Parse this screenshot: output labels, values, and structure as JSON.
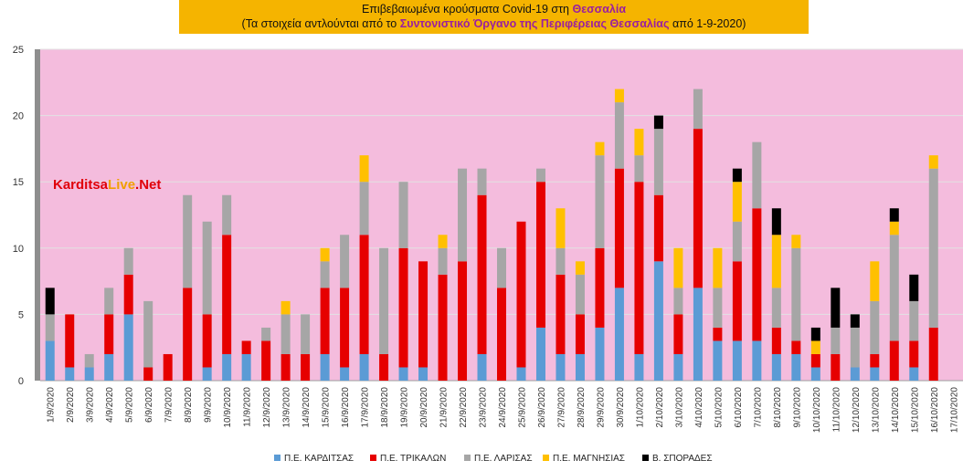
{
  "title": {
    "line1_prefix": "Επιβεβαιωμένα κρούσματα Covid-19 στη ",
    "line1_bold": "Θεσσαλία",
    "line2_prefix": "(Τα στοιχεία αντλούνται από το ",
    "line2_bold": "Συντονιστικό Όργανο της Περιφέρειας Θεσσαλίας",
    "line2_suffix": " από 1-9-2020)"
  },
  "brand": {
    "part1": "Karditsa",
    "part2": "Live",
    "part3": ".Net"
  },
  "colors": {
    "plot_bg": "#f4bcdd",
    "grid": "#e2e2e2",
    "karditsa": "#5b9bd5",
    "trikala": "#e60000",
    "larisa": "#a6a6a6",
    "magnisia": "#ffc000",
    "sporades": "#000000"
  },
  "chart_data": {
    "type": "bar",
    "stacked": true,
    "ylim": [
      0,
      25
    ],
    "yticks": [
      0,
      5,
      10,
      15,
      20,
      25
    ],
    "grid": true,
    "legend_position": "bottom",
    "categories": [
      "1/9/2020",
      "2/9/2020",
      "3/9/2020",
      "4/9/2020",
      "5/9/2020",
      "6/9/2020",
      "7/9/2020",
      "8/9/2020",
      "9/9/2020",
      "10/9/2020",
      "11/9/2020",
      "12/9/2020",
      "13/9/2020",
      "14/9/2020",
      "15/9/2020",
      "16/9/2020",
      "17/9/2020",
      "18/9/2020",
      "19/9/2020",
      "20/9/2020",
      "21/9/2020",
      "22/9/2020",
      "23/9/2020",
      "24/9/2020",
      "25/9/2020",
      "26/9/2020",
      "27/9/2020",
      "28/9/2020",
      "29/9/2020",
      "30/9/2020",
      "1/10/2020",
      "2/10/2020",
      "3/10/2020",
      "4/10/2020",
      "5/10/2020",
      "6/10/2020",
      "7/10/2020",
      "8/10/2020",
      "9/10/2020",
      "10/10/2020",
      "11/10/2020",
      "12/10/2020",
      "13/10/2020",
      "14/10/2020",
      "15/10/2020",
      "16/10/2020",
      "17/10/2020"
    ],
    "series": [
      {
        "name": "Π.Ε. ΚΑΡΔΙΤΣΑΣ",
        "color": "#5b9bd5",
        "values": [
          3,
          1,
          1,
          2,
          5,
          0,
          0,
          0,
          1,
          2,
          2,
          0,
          0,
          0,
          2,
          1,
          2,
          0,
          1,
          1,
          0,
          0,
          2,
          0,
          1,
          4,
          2,
          2,
          4,
          7,
          2,
          9,
          2,
          7,
          3,
          3,
          3,
          2,
          2,
          1,
          0,
          1,
          1,
          0,
          1,
          0,
          0
        ]
      },
      {
        "name": "Π.Ε. ΤΡΙΚΑΛΩΝ",
        "color": "#e60000",
        "values": [
          0,
          4,
          0,
          3,
          3,
          1,
          2,
          7,
          4,
          9,
          1,
          3,
          2,
          2,
          5,
          6,
          9,
          2,
          9,
          8,
          8,
          9,
          12,
          7,
          11,
          11,
          6,
          3,
          6,
          9,
          13,
          5,
          3,
          12,
          1,
          6,
          10,
          2,
          1,
          1,
          2,
          0,
          1,
          3,
          2,
          4,
          0
        ]
      },
      {
        "name": "Π.Ε. ΛΑΡΙΣΑΣ",
        "color": "#a6a6a6",
        "values": [
          2,
          0,
          1,
          2,
          2,
          5,
          0,
          7,
          7,
          3,
          0,
          1,
          3,
          3,
          2,
          4,
          4,
          8,
          5,
          0,
          2,
          7,
          2,
          3,
          0,
          1,
          2,
          3,
          7,
          5,
          2,
          5,
          2,
          3,
          3,
          3,
          5,
          3,
          7,
          0,
          2,
          3,
          4,
          8,
          3,
          12,
          0
        ]
      },
      {
        "name": "Π.Ε. ΜΑΓΝΗΣΙΑΣ",
        "color": "#ffc000",
        "values": [
          0,
          0,
          0,
          0,
          0,
          0,
          0,
          0,
          0,
          0,
          0,
          0,
          1,
          0,
          1,
          0,
          2,
          0,
          0,
          0,
          1,
          0,
          0,
          0,
          0,
          0,
          3,
          1,
          1,
          1,
          2,
          0,
          3,
          0,
          3,
          3,
          0,
          4,
          1,
          1,
          0,
          0,
          3,
          1,
          0,
          1,
          0
        ]
      },
      {
        "name": "Β. ΣΠΟΡΑΔΕΣ",
        "color": "#000000",
        "values": [
          2,
          0,
          0,
          0,
          0,
          0,
          0,
          0,
          0,
          0,
          0,
          0,
          0,
          0,
          0,
          0,
          0,
          0,
          0,
          0,
          0,
          0,
          0,
          0,
          0,
          0,
          0,
          0,
          0,
          0,
          0,
          1,
          0,
          0,
          0,
          1,
          0,
          2,
          0,
          1,
          3,
          1,
          0,
          1,
          2,
          0,
          0
        ]
      }
    ]
  }
}
